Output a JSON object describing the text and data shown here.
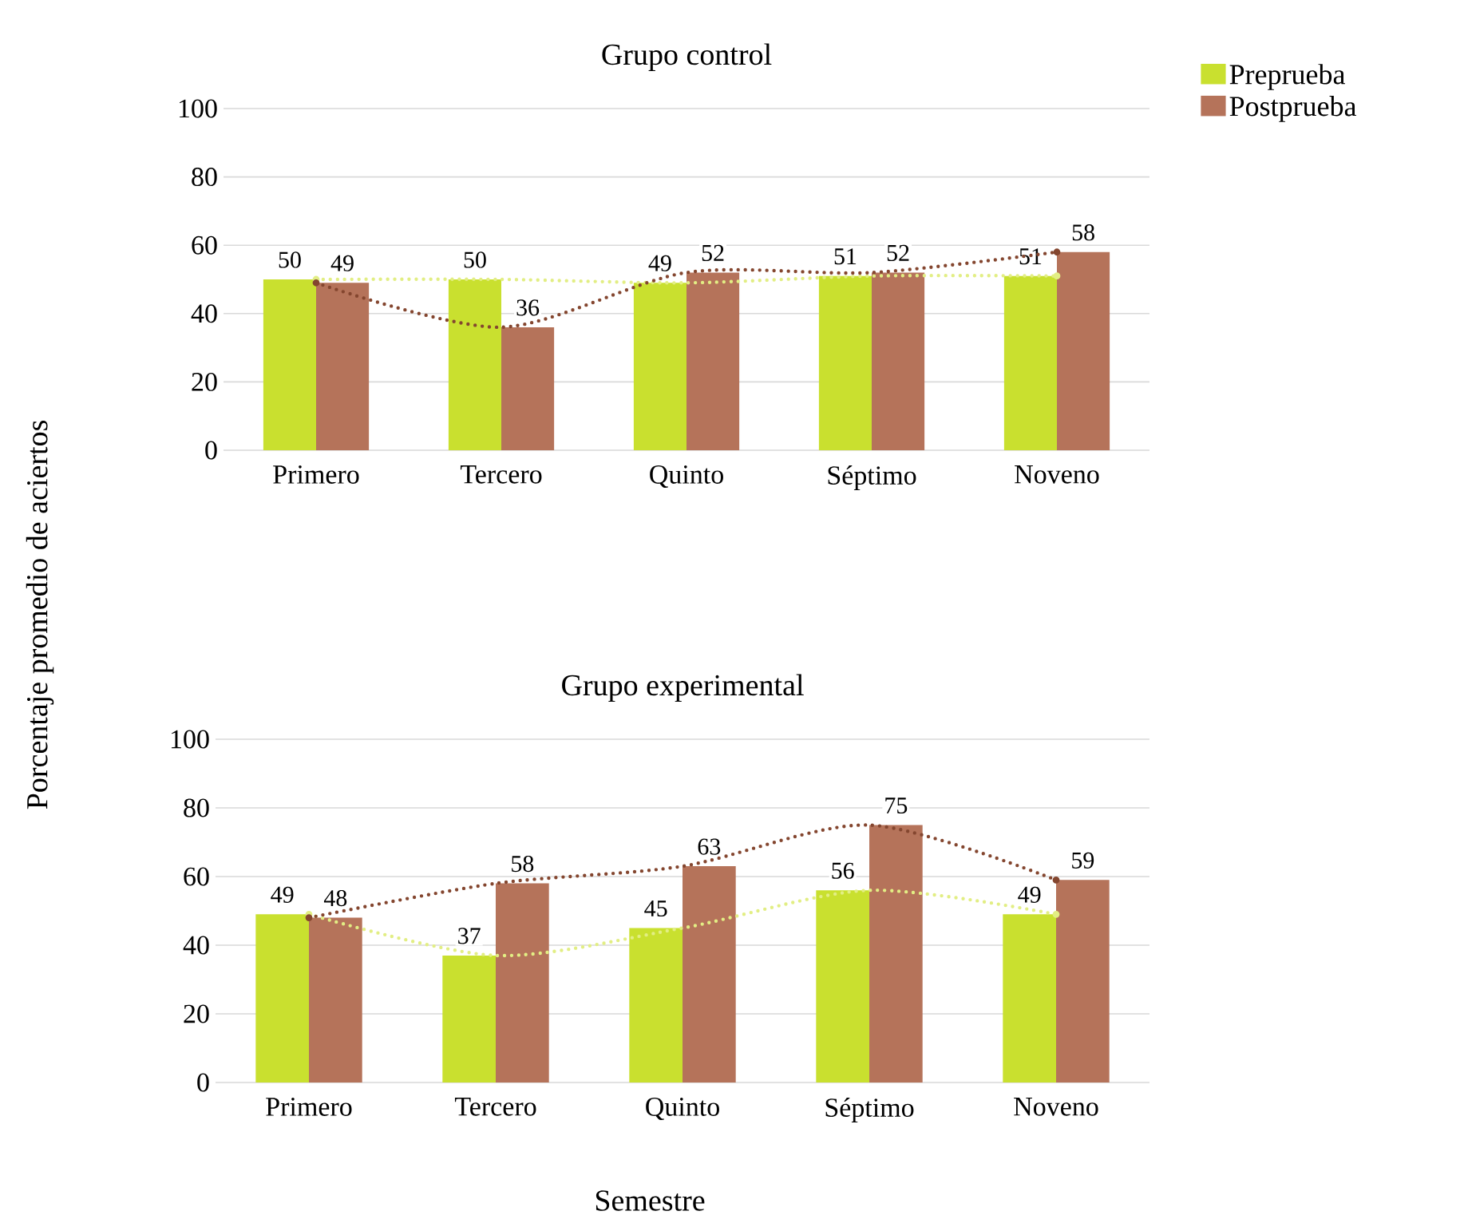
{
  "chart_data": [
    {
      "type": "bar",
      "title": "Grupo control",
      "ylabel": "Porcentaje promedio de aciertos",
      "categories": [
        "Primero",
        "Tercero",
        "Quinto",
        "Séptimo",
        "Noveno"
      ],
      "ylim": [
        0,
        100
      ],
      "yticks": [
        0,
        20,
        40,
        60,
        80,
        100
      ],
      "grid": "y",
      "legend": "top right",
      "data_labels": true,
      "series": [
        {
          "name": "Preprueba",
          "color": "#c9e02f",
          "values": [
            50,
            50,
            49,
            51,
            51
          ]
        },
        {
          "name": "Postprueba",
          "color": "#b5735a",
          "values": [
            49,
            36,
            52,
            52,
            58
          ]
        },
        {
          "type": "line",
          "line_style": "dotted",
          "color": "#e2ee84",
          "values": [
            50,
            50,
            49,
            51,
            51
          ],
          "value_labels": [
            null,
            null,
            null,
            null,
            null
          ]
        },
        {
          "type": "line",
          "line_style": "dotted",
          "color": "#84462f",
          "values": [
            49,
            36,
            52,
            52,
            58
          ],
          "value_labels": [
            null,
            null,
            null,
            null,
            null
          ]
        }
      ]
    },
    {
      "type": "bar",
      "title": "Grupo experimental",
      "xlabel": "Semestre",
      "categories": [
        "Primero",
        "Tercero",
        "Quinto",
        "Séptimo",
        "Noveno"
      ],
      "ylim": [
        0,
        100
      ],
      "yticks": [
        0,
        20,
        40,
        60,
        80,
        100
      ],
      "grid": "y",
      "data_labels": true,
      "series": [
        {
          "color": "#c9e02f",
          "values": [
            49,
            37,
            45,
            56,
            49
          ]
        },
        {
          "color": "#b5735a",
          "values": [
            48,
            58,
            63,
            75,
            59
          ]
        },
        {
          "type": "line",
          "line_style": "dotted",
          "color": "#e2ee84",
          "values": [
            49,
            37,
            45,
            56,
            49
          ],
          "value_labels": [
            null,
            null,
            null,
            null,
            null
          ]
        },
        {
          "type": "line",
          "line_style": "dotted",
          "color": "#84462f",
          "values": [
            48,
            58,
            63,
            75,
            59
          ],
          "value_labels": [
            null,
            null,
            null,
            null,
            null
          ]
        }
      ]
    }
  ]
}
